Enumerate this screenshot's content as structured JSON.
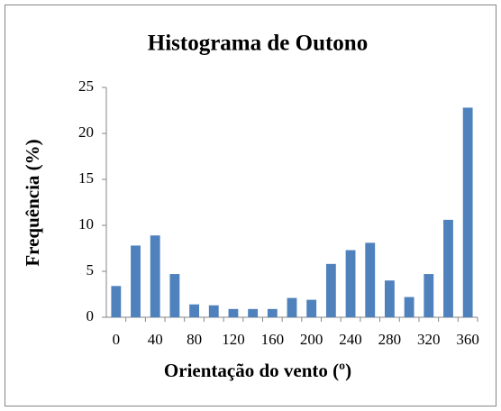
{
  "chart_data": {
    "type": "bar",
    "title": "Histograma de Outono",
    "x_label": "Orientação do vento (º)",
    "y_label": "Frequência (%)",
    "categories": [
      "0",
      null,
      "40",
      null,
      "80",
      null,
      "120",
      null,
      "160",
      null,
      "200",
      null,
      "240",
      null,
      "280",
      null,
      "320",
      null,
      "360"
    ],
    "values": [
      3.4,
      7.8,
      8.9,
      4.7,
      1.4,
      1.3,
      0.9,
      0.9,
      0.9,
      2.1,
      1.9,
      5.8,
      7.3,
      8.1,
      4.0,
      2.2,
      4.7,
      10.6,
      22.8
    ],
    "color": "#4f81bd",
    "ylim": [
      0,
      25
    ],
    "yticks": [
      0,
      5,
      10,
      15,
      20,
      25
    ],
    "grid": false
  }
}
